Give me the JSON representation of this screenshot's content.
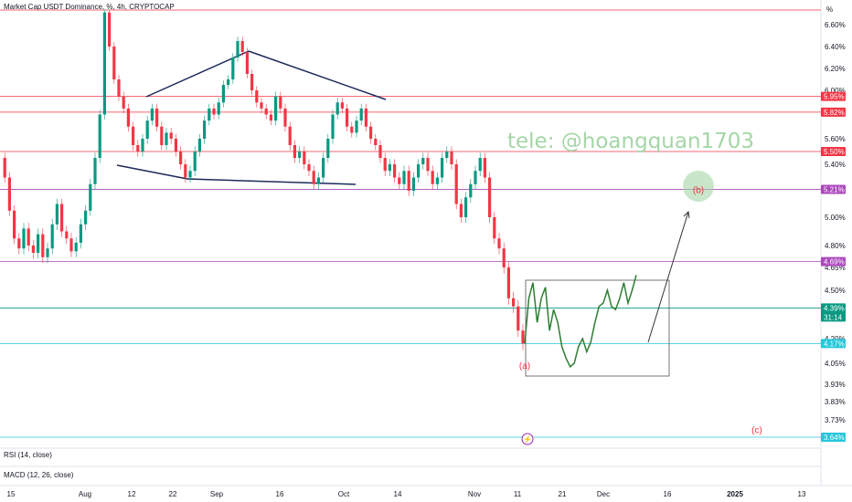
{
  "header": {
    "symbol_title": "Market Cap USDT Dominance, %, 4h, CRYPTOCAP"
  },
  "panes": {
    "rsi_label": "RSI (14, close)",
    "macd_label": "MACD (12, 26, close)"
  },
  "watermark": "tele: @hoangquan1703",
  "chart_data": {
    "type": "line",
    "unit_label": "%",
    "y_axis_ticks": [
      "6.60%",
      "6.40%",
      "6.20%",
      "6.00%",
      "5.60%",
      "5.40%",
      "5.00%",
      "4.80%",
      "4.65%",
      "4.50%",
      "4.20%",
      "4.05%",
      "3.93%",
      "3.83%",
      "3.73%"
    ],
    "y_axis_tick_values": [
      6.6,
      6.4,
      6.2,
      6.0,
      5.6,
      5.4,
      5.0,
      4.8,
      4.65,
      4.5,
      4.2,
      4.05,
      3.93,
      3.83,
      3.73
    ],
    "x_axis_ticks": [
      "15",
      "Aug",
      "12",
      "22",
      "Sep",
      "16",
      "Oct",
      "14",
      "Nov",
      "11",
      "21",
      "Dec",
      "16",
      "2025",
      "13"
    ],
    "price_tags": [
      {
        "label": "5.95%",
        "value": 5.95,
        "color": "#f23645"
      },
      {
        "label": "5.82%",
        "value": 5.82,
        "color": "#f23645"
      },
      {
        "label": "5.50%",
        "value": 5.5,
        "color": "#f23645"
      },
      {
        "label": "5.21%",
        "value": 5.21,
        "color": "#ab47bc"
      },
      {
        "label": "4.69%",
        "value": 4.69,
        "color": "#ab47bc"
      },
      {
        "label": "4.39%",
        "value": 4.39,
        "color": "#089981",
        "sublabel": "31:14"
      },
      {
        "label": "4.17%",
        "value": 4.17,
        "color": "#26c6da"
      },
      {
        "label": "3.64%",
        "value": 3.64,
        "color": "#26c6da"
      }
    ],
    "horizontal_levels": [
      {
        "value": 6.72,
        "color": "#f23645"
      },
      {
        "value": 5.95,
        "color": "#f23645"
      },
      {
        "value": 5.82,
        "color": "#f23645"
      },
      {
        "value": 5.5,
        "color": "#f23645"
      },
      {
        "value": 5.21,
        "color": "#ab47bc"
      },
      {
        "value": 4.69,
        "color": "#ab47bc"
      },
      {
        "value": 4.39,
        "color": "#089981"
      },
      {
        "value": 4.17,
        "color": "#26c6da"
      },
      {
        "value": 3.64,
        "color": "#26c6da"
      }
    ],
    "annotations": [
      {
        "text": "(a)",
        "value": 4.04,
        "color": "#f23645"
      },
      {
        "text": "(b)",
        "value": 5.21,
        "color": "#f23645"
      },
      {
        "text": "(c)",
        "value": 3.68,
        "color": "#f23645"
      }
    ],
    "series": [
      {
        "values": [
          5.45,
          5.3,
          5.05,
          4.85,
          4.78,
          4.92,
          4.8,
          4.75,
          4.88,
          4.72,
          4.78,
          4.95,
          5.1,
          4.9,
          4.85,
          4.76,
          4.82,
          4.95,
          5.05,
          5.25,
          5.45,
          5.8,
          6.7,
          6.4,
          6.1,
          5.95,
          5.85,
          5.7,
          5.55,
          5.5,
          5.6,
          5.75,
          5.85,
          5.7,
          5.55,
          5.65,
          5.6,
          5.5,
          5.4,
          5.3,
          5.35,
          5.5,
          5.6,
          5.75,
          5.85,
          5.8,
          5.9,
          6.05,
          6.1,
          6.3,
          6.45,
          6.35,
          6.15,
          6.0,
          5.9,
          5.85,
          5.8,
          5.75,
          5.95,
          5.85,
          5.7,
          5.55,
          5.45,
          5.5,
          5.4,
          5.35,
          5.25,
          5.3,
          5.45,
          5.6,
          5.8,
          5.9,
          5.85,
          5.7,
          5.65,
          5.75,
          5.85,
          5.7,
          5.6,
          5.55,
          5.45,
          5.35,
          5.4,
          5.3,
          5.25,
          5.35,
          5.2,
          5.3,
          5.4,
          5.45,
          5.35,
          5.25,
          5.3,
          5.45,
          5.5,
          5.4,
          5.1,
          5.0,
          5.15,
          5.25,
          5.35,
          5.45,
          5.3,
          5.0,
          4.85,
          4.78,
          4.65,
          4.45,
          4.4,
          4.25,
          4.17
        ]
      },
      {
        "values": [
          4.17,
          4.45,
          4.55,
          4.3,
          4.45,
          4.52,
          4.25,
          4.38,
          4.3,
          4.15,
          4.08,
          4.03,
          4.05,
          4.15,
          4.2,
          4.12,
          4.18,
          4.3,
          4.4,
          4.42,
          4.5,
          4.4,
          4.38,
          4.45,
          4.55,
          4.42,
          4.5,
          4.6
        ]
      }
    ]
  }
}
